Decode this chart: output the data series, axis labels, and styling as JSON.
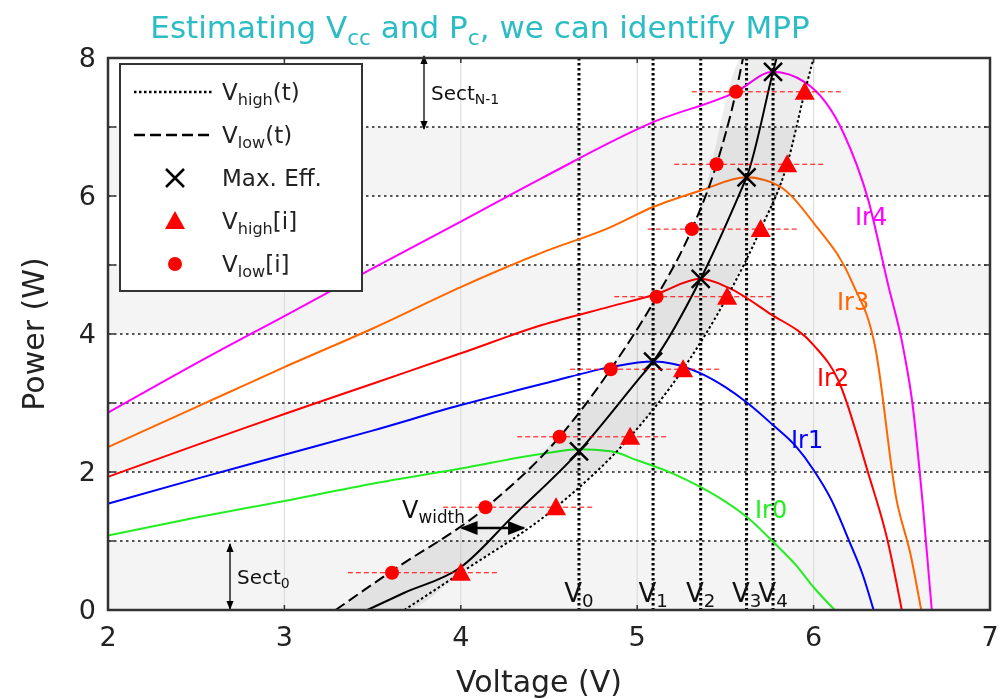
{
  "chart_data": {
    "type": "line",
    "title": "Estimating V$_{cc}$ and P$_{c}$, we can identify MPP",
    "xlabel": "Voltage (V)",
    "ylabel": "Power (W)",
    "xlim": [
      2,
      7
    ],
    "ylim": [
      0,
      8
    ],
    "xticks": [
      2,
      3,
      4,
      5,
      6,
      7
    ],
    "yticks": [
      0,
      {
        "value": 1,
        "label": null
      },
      2,
      {
        "value": 3,
        "label": null
      },
      4,
      {
        "value": 5,
        "label": null
      },
      6,
      {
        "value": 7,
        "label": null
      },
      8
    ],
    "grid": true,
    "legend": "top left",
    "bands": [
      {
        "axis": "y",
        "from": 0,
        "to": 1,
        "color": "#f4f4f4"
      },
      {
        "axis": "y",
        "from": 2,
        "to": 3,
        "color": "#f4f4f4"
      },
      {
        "axis": "y",
        "from": 4,
        "to": 5,
        "color": "#f4f4f4"
      },
      {
        "axis": "y",
        "from": 6,
        "to": 7,
        "color": "#f4f4f4"
      }
    ],
    "ref_lines": [
      {
        "axis": "x",
        "value": 4.67,
        "label": "V$_{0}$",
        "color": "#000000",
        "line_style": "dotted"
      },
      {
        "axis": "x",
        "value": 5.09,
        "label": "V$_{1}$",
        "color": "#000000",
        "line_style": "dotted"
      },
      {
        "axis": "x",
        "value": 5.36,
        "label": "V$_{2}$",
        "color": "#000000",
        "line_style": "dotted"
      },
      {
        "axis": "x",
        "value": 5.62,
        "label": "V$_{3}$",
        "color": "#000000",
        "line_style": "dotted"
      },
      {
        "axis": "x",
        "value": 5.77,
        "label": "V$_{4}$",
        "color": "#000000",
        "line_style": "dotted"
      }
    ],
    "annotations": [
      "Sect$_{0}$",
      "Sect$_{N-1}$",
      {
        "text": "V$_{width}$",
        "x": 4.0,
        "y": 1.19
      }
    ],
    "series": [
      {
        "name": "Ir0",
        "color": "#22ee22",
        "x": [
          2,
          2.5,
          3,
          3.5,
          4,
          4.5,
          4.67,
          4.85,
          5,
          5.2,
          5.36,
          5.5,
          5.62,
          5.77,
          5.9,
          6.0,
          6.12
        ],
        "values": [
          1.08,
          1.34,
          1.58,
          1.83,
          2.05,
          2.28,
          2.33,
          2.3,
          2.17,
          1.98,
          1.78,
          1.57,
          1.35,
          0.99,
          0.65,
          0.33,
          0
        ]
      },
      {
        "name": "Ir1",
        "color": "#0000ff",
        "x": [
          2,
          2.5,
          3,
          3.5,
          4,
          4.5,
          4.85,
          5.09,
          5.2,
          5.36,
          5.5,
          5.62,
          5.77,
          5.9,
          6.0,
          6.1,
          6.2,
          6.28,
          6.34
        ],
        "values": [
          1.54,
          1.9,
          2.25,
          2.6,
          2.97,
          3.3,
          3.52,
          3.6,
          3.57,
          3.43,
          3.23,
          3.01,
          2.68,
          2.37,
          2.03,
          1.6,
          1.01,
          0.5,
          0
        ]
      },
      {
        "name": "Ir2",
        "color": "#ff0000",
        "x": [
          2,
          2.5,
          3,
          3.5,
          4,
          4.46,
          4.85,
          5.11,
          5.36,
          5.51,
          5.75,
          6.0,
          6.14,
          6.31,
          6.42,
          6.5
        ],
        "values": [
          1.93,
          2.39,
          2.84,
          3.28,
          3.72,
          4.13,
          4.4,
          4.58,
          4.8,
          4.68,
          4.3,
          3.84,
          3.33,
          1.98,
          1.0,
          0
        ]
      },
      {
        "name": "Ir3",
        "color": "#ff6600",
        "x": [
          2,
          2.5,
          3,
          3.5,
          4,
          4.46,
          4.85,
          5.09,
          5.36,
          5.62,
          5.8,
          6.0,
          6.22,
          6.35,
          6.47,
          6.55,
          6.61
        ],
        "values": [
          2.36,
          2.94,
          3.52,
          4.08,
          4.68,
          5.18,
          5.55,
          5.84,
          6.08,
          6.27,
          6.15,
          5.61,
          4.74,
          3.8,
          1.6,
          0.8,
          0
        ]
      },
      {
        "name": "Ir4",
        "color": "#ff00ff",
        "x": [
          2,
          2.64,
          3,
          3.5,
          4,
          4.46,
          5.09,
          5.56,
          5.77,
          5.95,
          6.17,
          6.31,
          6.42,
          6.51,
          6.56,
          6.62,
          6.67
        ],
        "values": [
          2.86,
          3.77,
          4.26,
          4.95,
          5.63,
          6.26,
          7.07,
          7.51,
          7.8,
          7.65,
          6.91,
          5.94,
          4.74,
          3.77,
          3.0,
          1.5,
          0
        ]
      },
      {
        "name": "V$_{high}$(t)",
        "color": "#000000",
        "line_style": "dotted",
        "x": [
          3.68,
          4.0,
          4.54,
          4.96,
          5.26,
          5.51,
          5.7,
          5.85,
          5.95,
          6.0
        ],
        "values": [
          0,
          0.54,
          1.49,
          2.51,
          3.49,
          4.54,
          5.52,
          6.46,
          7.51,
          8
        ]
      },
      {
        "name": "V$_{low}$(t)",
        "color": "#000000",
        "line_style": "dashed",
        "x": [
          3.29,
          3.6,
          4.14,
          4.56,
          4.85,
          5.11,
          5.31,
          5.45,
          5.56,
          5.6
        ],
        "values": [
          0,
          0.55,
          1.48,
          2.51,
          3.49,
          4.54,
          5.52,
          6.46,
          7.51,
          8
        ]
      },
      {
        "color": "#000000",
        "x": [
          3.29,
          3.47,
          3.68,
          4.0,
          4.3,
          4.67,
          5.0,
          5.09,
          5.36,
          5.6,
          5.62,
          5.77,
          5.79,
          6.0
        ],
        "values": [
          null,
          0,
          0.25,
          0.62,
          1.37,
          2.3,
          3.32,
          3.6,
          4.8,
          6.15,
          6.27,
          7.8,
          8,
          null
        ],
        "upper": [
          0,
          0.32,
          0.69,
          1.24,
          1.87,
          2.88,
          4.1,
          4.46,
          5.85,
          8,
          8,
          8,
          8,
          8
        ],
        "lower": [
          0,
          0,
          0,
          0.54,
          1.07,
          1.77,
          2.62,
          2.9,
          3.9,
          5.03,
          5.13,
          5.84,
          5.97,
          8
        ]
      },
      {
        "name": "Max. Eff.",
        "type": "scatter",
        "marker": "cross",
        "color": "#000000",
        "x": [
          4.67,
          5.09,
          5.36,
          5.62,
          5.77
        ],
        "values": [
          2.3,
          3.6,
          4.8,
          6.27,
          7.8
        ]
      },
      {
        "name": "V$_{high}$[i]",
        "type": "scatter",
        "marker": "triangle",
        "color": "#ff0000",
        "x": [
          4.0,
          4.54,
          4.96,
          5.26,
          5.51,
          5.7,
          5.85,
          5.95
        ],
        "values": [
          0.54,
          1.49,
          2.51,
          3.49,
          4.54,
          5.52,
          6.46,
          7.51
        ]
      },
      {
        "name": "V$_{low}$[i]",
        "type": "scatter",
        "marker": "circle",
        "color": "#ff0000",
        "x": [
          3.61,
          4.14,
          4.56,
          4.85,
          5.11,
          5.31,
          5.45,
          5.56
        ],
        "values": [
          0.54,
          1.49,
          2.51,
          3.49,
          4.54,
          5.52,
          6.46,
          7.51
        ],
        "xerrors": [
          [
            3.36,
            4.21
          ],
          [
            3.9,
            4.75
          ],
          [
            4.32,
            5.17
          ],
          [
            4.62,
            5.47
          ],
          [
            4.87,
            5.76
          ],
          [
            5.06,
            5.92
          ],
          [
            5.21,
            6.06
          ],
          [
            5.31,
            6.16
          ]
        ]
      }
    ]
  }
}
